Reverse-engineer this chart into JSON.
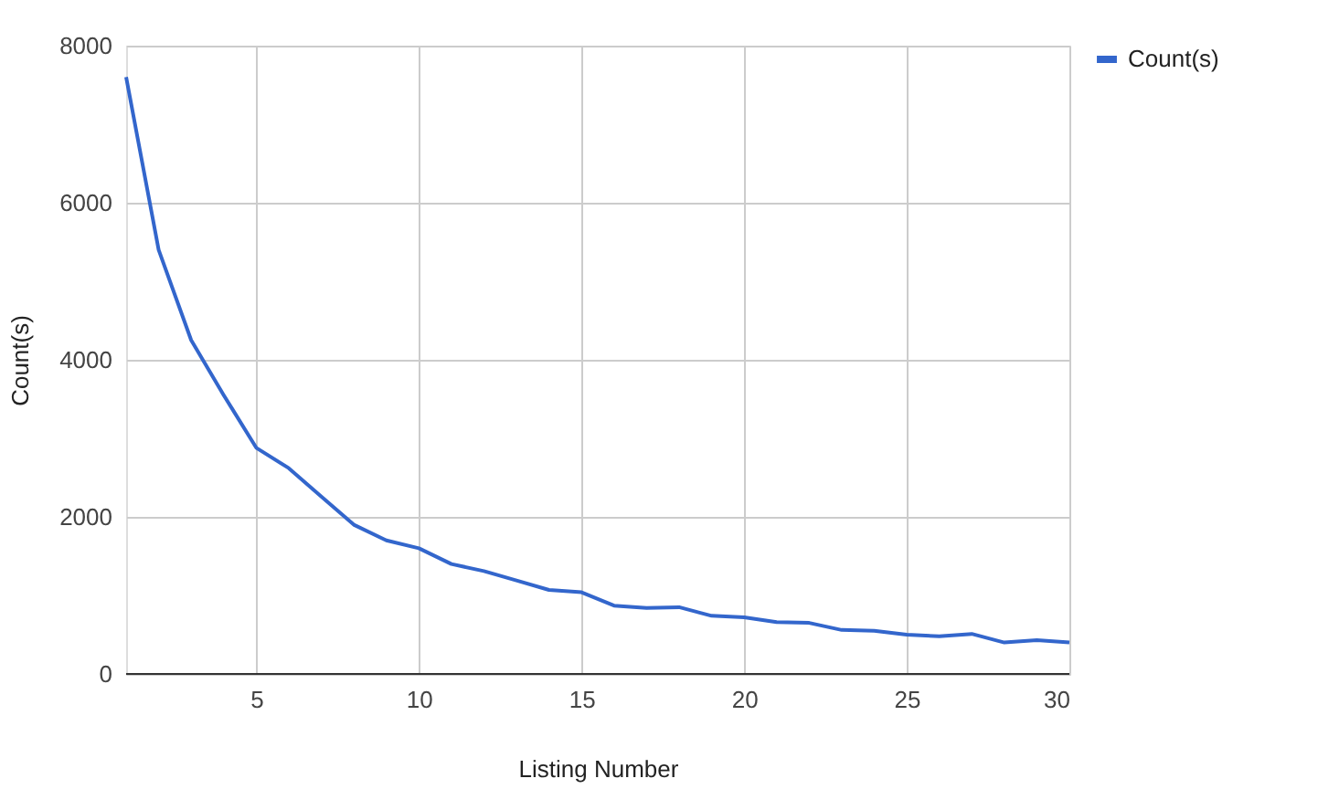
{
  "chart_data": {
    "type": "line",
    "xlabel": "Listing Number",
    "ylabel": "Count(s)",
    "x": [
      1,
      2,
      3,
      4,
      5,
      6,
      7,
      8,
      9,
      10,
      11,
      12,
      13,
      14,
      15,
      16,
      17,
      18,
      19,
      20,
      21,
      22,
      23,
      24,
      25,
      26,
      27,
      28,
      29,
      30
    ],
    "series": [
      {
        "name": "Count(s)",
        "color": "#3366cc",
        "values": [
          7600,
          5400,
          4250,
          3550,
          2880,
          2620,
          2260,
          1900,
          1700,
          1600,
          1400,
          1310,
          1190,
          1070,
          1040,
          870,
          840,
          850,
          740,
          720,
          660,
          650,
          560,
          550,
          500,
          480,
          510,
          400,
          430,
          400
        ]
      }
    ],
    "xlim": [
      1,
      30
    ],
    "xticks": [
      5,
      10,
      15,
      20,
      25,
      30
    ],
    "ylim": [
      0,
      8000
    ],
    "yticks": [
      0,
      2000,
      4000,
      6000,
      8000
    ],
    "grid": true,
    "legend": "top right",
    "marker": "none",
    "line_style": "solid"
  }
}
